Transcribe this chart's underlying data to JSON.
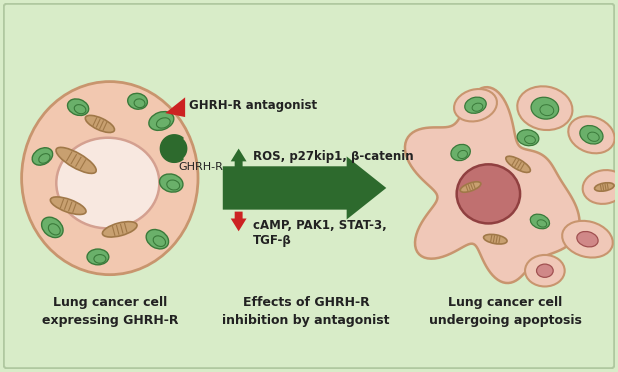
{
  "background_color": "#d8ecc8",
  "fig_width": 6.18,
  "fig_height": 3.72,
  "cell_color": "#f2c8b0",
  "cell_border_color": "#c8956e",
  "nucleus_color": "#f8e8e0",
  "nucleus_border_color": "#d4a090",
  "mito_color": "#c8a070",
  "mito_border": "#a07848",
  "green_color": "#6ab06a",
  "green_border": "#3a7a3a",
  "dark_green": "#2d6a2d",
  "red_color": "#cc2222",
  "text_color": "#222222",
  "label1": "Lung cancer cell\nexpressing GHRH-R",
  "label2": "Effects of GHRH-R\ninhibition by antagonist",
  "label3": "Lung cancer cell\nundergoing apoptosis",
  "antagonist_label": "GHRH-R antagonist",
  "receptor_label": "GHRH-R",
  "up_text": "ROS, p27kip1, β-catenin",
  "down_text": "cAMP, PAK1, STAT-3,\nTGF-β",
  "apop_cell_color": "#f0c8b8",
  "apop_nucleus_color": "#c07070",
  "apop_nucleus_border": "#904040",
  "pink_blob_color": "#d08888",
  "pink_blob_border": "#a05050"
}
